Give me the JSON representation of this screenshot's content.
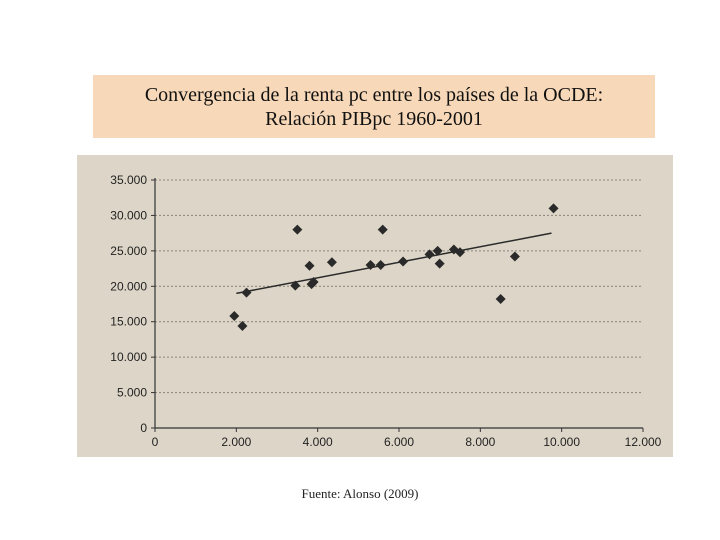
{
  "header": {
    "title_line1": "Convergencia de la renta pc entre los países de la OCDE:",
    "title_line2": "Relación PIBpc 1960-2001"
  },
  "footer": {
    "source": "Fuente: Alonso (2009)"
  },
  "colors": {
    "title_background": "#f7d8b8",
    "chart_background": "#ddd6c8",
    "marker": "#2a2a2a",
    "trendline": "#2a2a2a"
  },
  "chart_data": {
    "type": "scatter",
    "title": "",
    "xlabel": "",
    "ylabel": "",
    "xlim": [
      0,
      12000
    ],
    "ylim": [
      0,
      35000
    ],
    "x_tick_labels": [
      "0",
      "2.000",
      "4.000",
      "6.000",
      "8.000",
      "10.000",
      "12.000"
    ],
    "x_ticks": [
      0,
      2000,
      4000,
      6000,
      8000,
      10000,
      12000
    ],
    "y_tick_labels": [
      "0",
      "5.000",
      "10.000",
      "15.000",
      "20.000",
      "25.000",
      "30.000",
      "35.000"
    ],
    "y_ticks": [
      0,
      5000,
      10000,
      15000,
      20000,
      25000,
      30000,
      35000
    ],
    "grid": "horizontal",
    "legend": "none",
    "points": [
      {
        "x": 1950,
        "y": 15800
      },
      {
        "x": 2150,
        "y": 14400
      },
      {
        "x": 2250,
        "y": 19100
      },
      {
        "x": 3450,
        "y": 20100
      },
      {
        "x": 3500,
        "y": 28000
      },
      {
        "x": 3800,
        "y": 22900
      },
      {
        "x": 3850,
        "y": 20300
      },
      {
        "x": 3900,
        "y": 20600
      },
      {
        "x": 4350,
        "y": 23400
      },
      {
        "x": 5300,
        "y": 23000
      },
      {
        "x": 5550,
        "y": 23000
      },
      {
        "x": 5600,
        "y": 28000
      },
      {
        "x": 6100,
        "y": 23500
      },
      {
        "x": 6750,
        "y": 24500
      },
      {
        "x": 6950,
        "y": 25000
      },
      {
        "x": 7000,
        "y": 23200
      },
      {
        "x": 7350,
        "y": 25200
      },
      {
        "x": 7500,
        "y": 24800
      },
      {
        "x": 8500,
        "y": 18200
      },
      {
        "x": 8850,
        "y": 24200
      },
      {
        "x": 9800,
        "y": 31000
      }
    ],
    "trendline": {
      "x": [
        2000,
        9750
      ],
      "y": [
        19000,
        27500
      ]
    }
  }
}
